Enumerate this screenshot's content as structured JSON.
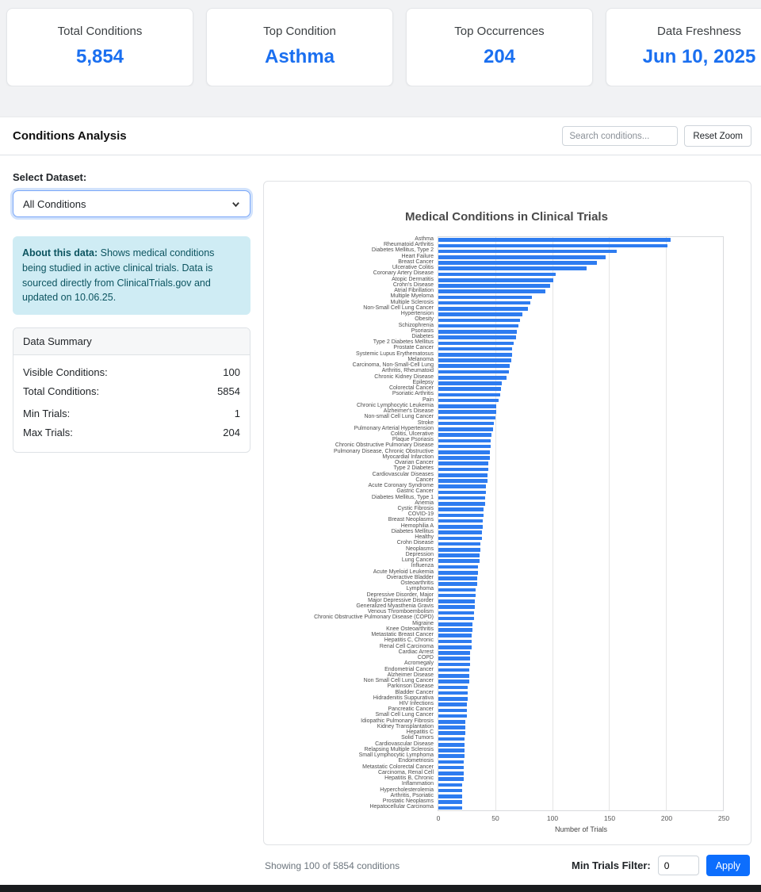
{
  "colors": {
    "accent_blue": "#1a6ff0",
    "bar_blue": "#2e7cf0",
    "apply_button_blue": "#0d6efd",
    "info_box_bg": "#cfecf4",
    "info_text": "#0c5460"
  },
  "stats": {
    "cards": [
      {
        "label": "Total Conditions",
        "value": "5,854"
      },
      {
        "label": "Top Condition",
        "value": "Asthma"
      },
      {
        "label": "Top Occurrences",
        "value": "204"
      },
      {
        "label": "Data Freshness",
        "value": "Jun 10, 2025"
      }
    ]
  },
  "header": {
    "title": "Conditions Analysis",
    "search_placeholder": "Search conditions...",
    "reset_zoom_label": "Reset Zoom"
  },
  "sidebar": {
    "dataset_label": "Select Dataset:",
    "dataset_selected": "All Conditions",
    "about": {
      "bold": "About this data:",
      "text": " Shows medical conditions being studied in active clinical trials. Data is sourced directly from ClinicalTrials.gov and updated on 10.06.25."
    },
    "summary": {
      "title": "Data Summary",
      "rows": [
        {
          "label": "Visible Conditions:",
          "value": "100"
        },
        {
          "label": "Total Conditions:",
          "value": "5854"
        },
        {
          "label": "Min Trials:",
          "value": "1"
        },
        {
          "label": "Max Trials:",
          "value": "204"
        }
      ]
    }
  },
  "chart_data": {
    "type": "bar",
    "orientation": "horizontal",
    "title": "Medical Conditions in Clinical Trials",
    "xlabel": "Number of Trials",
    "xlim": [
      0,
      250
    ],
    "xticks": [
      0,
      50,
      100,
      150,
      200,
      250
    ],
    "grid": true,
    "bar_color": "#2e7cf0",
    "categories": [
      "Asthma",
      "Rheumatoid Arthritis",
      "Diabetes Mellitus, Type 2",
      "Heart Failure",
      "Breast Cancer",
      "Ulcerative Colitis",
      "Coronary Artery Disease",
      "Atopic Dermatitis",
      "Crohn's Disease",
      "Atrial Fibrillation",
      "Multiple Myeloma",
      "Multiple Sclerosis",
      "Non-Small Cell Lung Cancer",
      "Hypertension",
      "Obesity",
      "Schizophrenia",
      "Psoriasis",
      "Diabetes",
      "Type 2 Diabetes Mellitus",
      "Prostate Cancer",
      "Systemic Lupus Erythematosus",
      "Melanoma",
      "Carcinoma, Non-Small-Cell Lung",
      "Arthritis, Rheumatoid",
      "Chronic Kidney Disease",
      "Epilepsy",
      "Colorectal Cancer",
      "Psoriatic Arthritis",
      "Pain",
      "Chronic Lymphocytic Leukemia",
      "Alzheimer's Disease",
      "Non-small Cell Lung Cancer",
      "Stroke",
      "Pulmonary Arterial Hypertension",
      "Colitis, Ulcerative",
      "Plaque Psoriasis",
      "Chronic Obstructive Pulmonary Disease",
      "Pulmonary Disease, Chronic Obstructive",
      "Myocardial Infarction",
      "Ovarian Cancer",
      "Type 2 Diabetes",
      "Cardiovascular Diseases",
      "Cancer",
      "Acute Coronary Syndrome",
      "Gastric Cancer",
      "Diabetes Mellitus, Type 1",
      "Anemia",
      "Cystic Fibrosis",
      "COVID-19",
      "Breast Neoplasms",
      "Hemophilia A",
      "Diabetes Mellitus",
      "Healthy",
      "Crohn Disease",
      "Neoplasms",
      "Depression",
      "Lung Cancer",
      "Influenza",
      "Acute Myeloid Leukemia",
      "Overactive Bladder",
      "Osteoarthritis",
      "Lymphoma",
      "Depressive Disorder, Major",
      "Major Depressive Disorder",
      "Generalized Myasthenia Gravis",
      "Venous Thromboembolism",
      "Chronic Obstructive Pulmonary Disease (COPD)",
      "Migraine",
      "Knee Osteoarthritis",
      "Metastatic Breast Cancer",
      "Hepatitis C, Chronic",
      "Renal Cell Carcinoma",
      "Cardiac Arrest",
      "COPD",
      "Acromegaly",
      "Endometrial Cancer",
      "Alzheimer Disease",
      "Non Small Cell Lung Cancer",
      "Parkinson Disease",
      "Bladder Cancer",
      "Hidradenitis Suppurativa",
      "HIV Infections",
      "Pancreatic Cancer",
      "Small Cell Lung Cancer",
      "Idiopathic Pulmonary Fibrosis",
      "Kidney Transplantation",
      "Hepatitis C",
      "Solid Tumors",
      "Cardiovascular Disease",
      "Relapsing Multiple Sclerosis",
      "Small Lymphocytic Lymphoma",
      "Endometriosis",
      "Metastatic Colorectal Cancer",
      "Carcinoma, Renal Cell",
      "Hepatitis B, Chronic",
      "Inflammation",
      "Hypercholesterolemia",
      "Arthritis, Psoriatic",
      "Prostatic Neoplasms",
      "Hepatocellular Carcinoma"
    ],
    "values": [
      204,
      201,
      157,
      147,
      139,
      130,
      103,
      101,
      98,
      94,
      82,
      81,
      79,
      74,
      72,
      70,
      69,
      68,
      66,
      65,
      65,
      64,
      63,
      62,
      60,
      56,
      55,
      54,
      53,
      51,
      51,
      50,
      49,
      48,
      47,
      46,
      46,
      45,
      45,
      44,
      44,
      43,
      43,
      42,
      42,
      41,
      41,
      40,
      40,
      39,
      39,
      38,
      38,
      37,
      37,
      36,
      36,
      35,
      35,
      34,
      34,
      33,
      33,
      32,
      32,
      31,
      31,
      30,
      30,
      29,
      29,
      29,
      28,
      28,
      28,
      27,
      27,
      27,
      26,
      26,
      26,
      25,
      25,
      25,
      24,
      24,
      24,
      23,
      23,
      23,
      23,
      22,
      22,
      22,
      22,
      21,
      21,
      21,
      21,
      21
    ]
  },
  "footer": {
    "showing_text": "Showing 100 of 5854 conditions",
    "min_trials_label": "Min Trials Filter:",
    "min_trials_value": "0",
    "apply_label": "Apply"
  }
}
